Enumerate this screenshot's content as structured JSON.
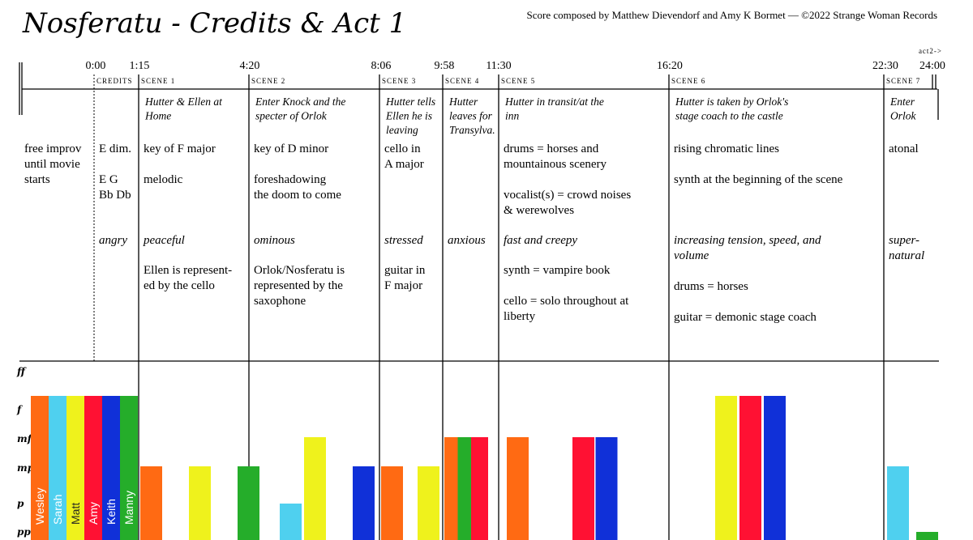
{
  "header": {
    "title": "Nosferatu - Credits & Act 1",
    "credits": "Score composed by Matthew Dievendorf and Amy K Bormet — ©2022 Strange Woman Records",
    "act2_marker": "act2->"
  },
  "timeline": {
    "times": [
      "0:00",
      "1:15",
      "4:20",
      "8:06",
      "9:58",
      "11:30",
      "16:20",
      "22:30",
      "24:00"
    ]
  },
  "prelude": {
    "notes": [
      "free improv",
      "until movie",
      "starts"
    ]
  },
  "sections": [
    {
      "label": "credits",
      "description": [],
      "notes": [
        "E dim.",
        "",
        "E G",
        "Bb Db"
      ],
      "mood": [
        "angry"
      ],
      "extra": []
    },
    {
      "label": "scene 1",
      "description": [
        "Hutter & Ellen at",
        "Home"
      ],
      "notes": [
        "key of F major",
        "",
        "melodic"
      ],
      "mood": [
        "peaceful"
      ],
      "extra": [
        "Ellen is represent-",
        "ed by the cello"
      ]
    },
    {
      "label": "scene 2",
      "description": [
        "Enter Knock and the",
        "specter of Orlok"
      ],
      "notes": [
        "key of D minor",
        "",
        "foreshadowing",
        "the doom to come"
      ],
      "mood": [
        "ominous"
      ],
      "extra": [
        "Orlok/Nosferatu is",
        "represented by the",
        "saxophone"
      ]
    },
    {
      "label": "scene 3",
      "description": [
        "Hutter tells",
        "Ellen he is",
        "leaving"
      ],
      "notes": [
        "cello in",
        "A major"
      ],
      "mood": [
        "stressed"
      ],
      "extra": [
        "guitar in",
        "F major"
      ]
    },
    {
      "label": "scene 4",
      "description": [
        "Hutter",
        "leaves for",
        "Transylva."
      ],
      "notes": [],
      "mood": [
        "anxious"
      ],
      "extra": []
    },
    {
      "label": "scene 5",
      "description": [
        "Hutter in transit/at the",
        "inn"
      ],
      "notes": [
        "drums = horses and",
        "mountainous scenery",
        "",
        "vocalist(s) = crowd noises",
        "& werewolves"
      ],
      "mood": [
        "fast and creepy"
      ],
      "extra": [
        "synth = vampire book",
        "",
        "cello = solo throughout at",
        "liberty"
      ]
    },
    {
      "label": "scene 6",
      "description": [
        "Hutter is taken by Orlok's",
        "stage coach to the castle"
      ],
      "notes": [
        "rising chromatic lines",
        "",
        "synth at the beginning of the scene"
      ],
      "mood": [
        "increasing tension, speed, and",
        "volume"
      ],
      "extra": [
        "drums = horses",
        "",
        "guitar = demonic stage coach"
      ]
    },
    {
      "label": "scene 7",
      "description": [
        "Enter",
        "Orlok"
      ],
      "notes": [
        "atonal"
      ],
      "mood": [
        "super-",
        "natural"
      ],
      "extra": []
    }
  ],
  "colors": {
    "Wesley": "#ff6a13",
    "Sarah": "#4fd0ef",
    "Matt": "#eff21c",
    "Amy": "#ff1133",
    "Keith": "#1030d8",
    "Manny": "#25ad2a"
  },
  "chart_data": {
    "type": "bar",
    "dynamics_levels": [
      "pp",
      "p",
      "mp",
      "mf",
      "f",
      "ff"
    ],
    "players": [
      "Wesley",
      "Sarah",
      "Matt",
      "Amy",
      "Keith",
      "Manny"
    ],
    "bars": [
      {
        "section": "credits",
        "player": "Wesley",
        "level": "f"
      },
      {
        "section": "credits",
        "player": "Sarah",
        "level": "f"
      },
      {
        "section": "credits",
        "player": "Matt",
        "level": "f"
      },
      {
        "section": "credits",
        "player": "Amy",
        "level": "f"
      },
      {
        "section": "credits",
        "player": "Keith",
        "level": "f"
      },
      {
        "section": "credits",
        "player": "Manny",
        "level": "f"
      },
      {
        "section": "scene 1",
        "player": "Wesley",
        "level": "mp"
      },
      {
        "section": "scene 1",
        "player": "Matt",
        "level": "mp"
      },
      {
        "section": "scene 1",
        "player": "Manny",
        "level": "mp"
      },
      {
        "section": "scene 2",
        "player": "Sarah",
        "level": "p"
      },
      {
        "section": "scene 2",
        "player": "Matt",
        "level": "mf"
      },
      {
        "section": "scene 2",
        "player": "Keith",
        "level": "mp"
      },
      {
        "section": "scene 3",
        "player": "Wesley",
        "level": "mp"
      },
      {
        "section": "scene 3",
        "player": "Matt",
        "level": "mp"
      },
      {
        "section": "scene 4",
        "player": "Wesley",
        "level": "mf"
      },
      {
        "section": "scene 4",
        "player": "Manny",
        "level": "mf"
      },
      {
        "section": "scene 4",
        "player": "Amy",
        "level": "mf"
      },
      {
        "section": "scene 5",
        "player": "Wesley",
        "level": "mf"
      },
      {
        "section": "scene 5",
        "player": "Amy",
        "level": "mf"
      },
      {
        "section": "scene 5",
        "player": "Keith",
        "level": "mf"
      },
      {
        "section": "scene 6",
        "player": "Matt",
        "level": "f"
      },
      {
        "section": "scene 6",
        "player": "Amy",
        "level": "f"
      },
      {
        "section": "scene 6",
        "player": "Keith",
        "level": "f"
      },
      {
        "section": "scene 7",
        "player": "Sarah",
        "level": "mp"
      },
      {
        "section": "scene 7",
        "player": "Manny",
        "level": "pp"
      }
    ]
  }
}
